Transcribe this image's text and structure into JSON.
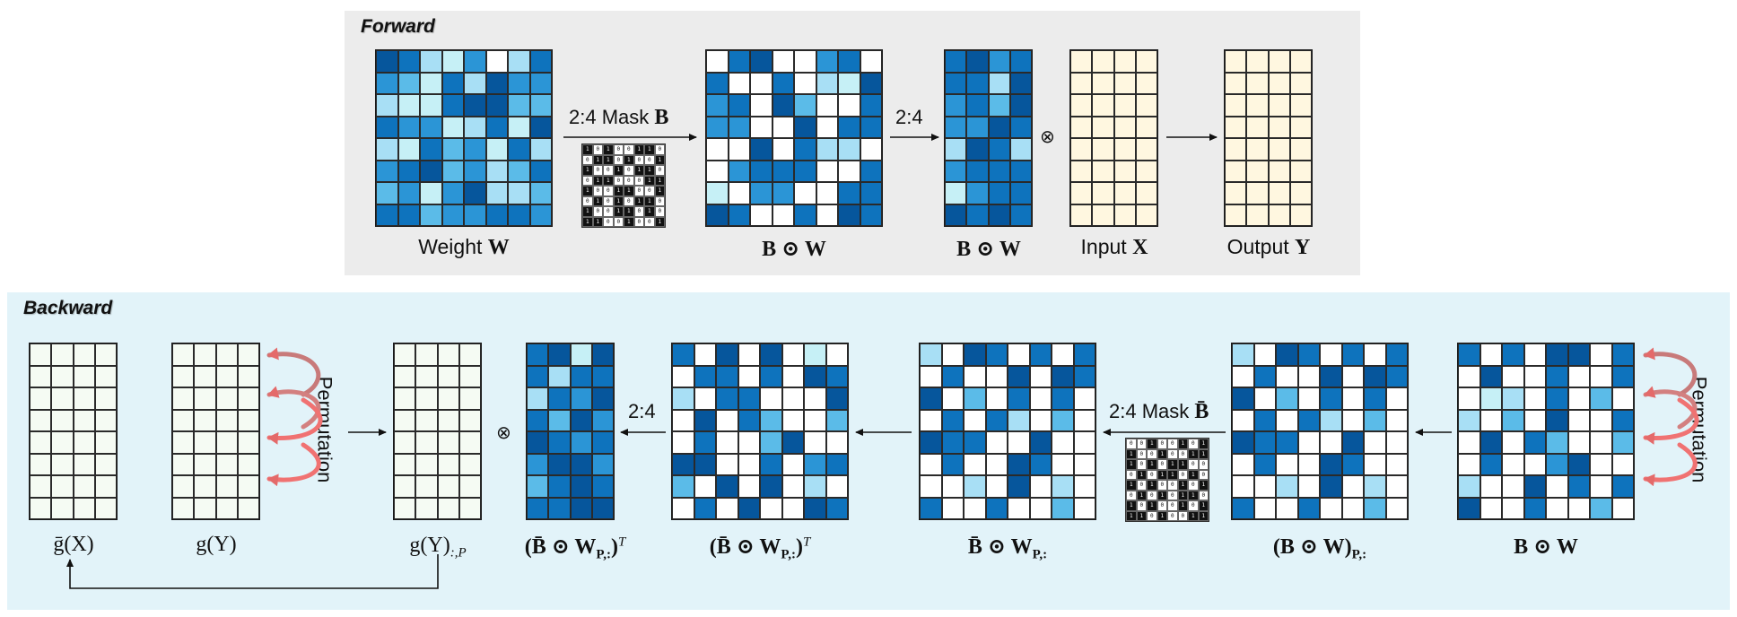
{
  "forward": {
    "title": "Forward",
    "weight_caption": "Weight",
    "weight_sym": "W",
    "mask_label_prefix": "2:4 Mask",
    "mask_sym": "B",
    "masked_caption": "B ⊙ W",
    "compress_label": "2:4",
    "compressed_caption": "B ⊙ W",
    "multiply_symbol": "⊗",
    "input_caption": "Input",
    "input_sym": "X",
    "output_caption": "Output",
    "output_sym": "Y"
  },
  "backward": {
    "title": "Backward",
    "gx_caption": "ḡ(X)",
    "gy_caption": "g(Y)",
    "permutation_label": "Permutation",
    "gyp_caption": "g(Y)",
    "gyp_sub": ":,P",
    "multiply_symbol": "⊗",
    "compressed_t_caption": "(B̄ ⊙ W",
    "compressed_t_sub": "P,:",
    "compressed_t_sup": "T",
    "compress_label": "2:4",
    "masked_t_caption": "(B̄ ⊙ W",
    "masked_t_sub": "P,:",
    "masked_t_sup": "T",
    "mask_label_prefix": "2:4 Mask",
    "mask_sym": "B̄",
    "masked_p_caption": "B̄ ⊙ W",
    "masked_p_sub": "P,:",
    "permuted_caption": "(B ⊙ W)",
    "permuted_sub": "P,:",
    "source_caption": "B ⊙ W",
    "permutation_label_2": "Permutation"
  },
  "colors": {
    "white": "#ffffff",
    "c1": "#c6f0f6",
    "c2": "#a8dff5",
    "c3": "#5bbbe8",
    "c4": "#2b95d6",
    "c5": "#0e73bd",
    "c6": "#06569c",
    "cream": "#fff7e0",
    "mint": "#f5fbf3",
    "arrow_red": "#e46a6a"
  },
  "matrices": {
    "weight": [
      "65214025",
      "43152644",
      "21156633",
      "54412516",
      "21534152",
      "45634235",
      "34146223",
      "55344554"
    ],
    "masked": [
      "05600450",
      "50050216",
      "45063005",
      "44006055",
      "00605220",
      "04555005",
      "10440055",
      "65005065"
    ],
    "compressed": [
      "5645",
      "5526",
      "4536",
      "4465",
      "2652",
      "4555",
      "1455",
      "6565"
    ],
    "bw_compressed_t": [
      "5616",
      "5255",
      "2546",
      "5364",
      "6545",
      "4664",
      "3565",
      "5566"
    ],
    "bw_masked_t": [
      "50606010",
      "05505065",
      "20550006",
      "06053003",
      "05003600",
      "66005045",
      "30606020",
      "05060065"
    ],
    "bw_masked_p": [
      "20650505",
      "05006065",
      "60305050",
      "05052030",
      "65500600",
      "05006500",
      "00206020",
      "50050030"
    ],
    "bw_permuted": [
      "20650505",
      "05006065",
      "60305050",
      "05052030",
      "65500600",
      "05006500",
      "00206020",
      "50050030"
    ],
    "bw_source": [
      "50506605",
      "06005005",
      "01205030",
      "20306005",
      "06053003",
      "05004600",
      "20060505",
      "60050030"
    ]
  },
  "masks": {
    "forward": [
      "10100110",
      "01101001",
      "10010110",
      "01100011",
      "10011001",
      "01010110",
      "10011010",
      "11001001"
    ],
    "backward": [
      "00100101",
      "10010011",
      "10101100",
      "01011010",
      "10100101",
      "01010110",
      "10100101",
      "11010011"
    ]
  }
}
